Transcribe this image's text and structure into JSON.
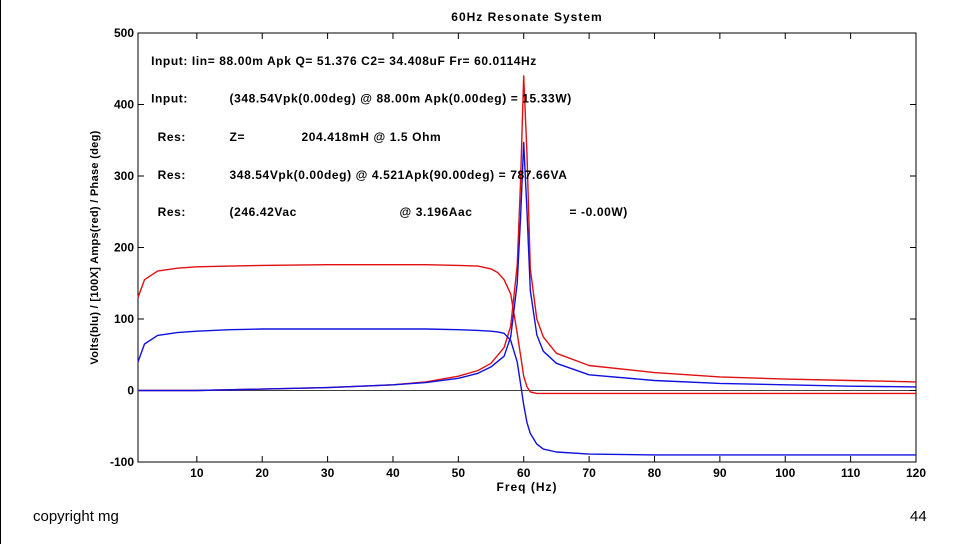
{
  "footer": {
    "left": "copyright mg",
    "right": "44"
  },
  "chart_data": {
    "type": "line",
    "title": "60Hz Resonate System",
    "xlabel": "Freq (Hz)",
    "ylabel": "Volts(blu)  / [100X] Amps(red) / Phase (deg)",
    "xlim": [
      1,
      120
    ],
    "ylim": [
      -100,
      500
    ],
    "xticks": [
      10,
      20,
      30,
      40,
      50,
      60,
      70,
      80,
      90,
      100,
      110,
      120
    ],
    "yticks": [
      -100,
      0,
      100,
      200,
      300,
      400,
      500
    ],
    "grid": false,
    "legend": "none",
    "zero_line": true,
    "annotations": [
      {
        "text": "Input: Iin= 88.00m Apk  Q= 51.376  C2= 34.408uF Fr= 60.0114Hz",
        "x": 3,
        "y": 455
      },
      {
        "text": "Input:",
        "x": 3,
        "y": 403
      },
      {
        "text": "(348.54Vpk(0.00deg) @ 88.00m Apk(0.00deg) = 15.33W)",
        "x": 15,
        "y": 403
      },
      {
        "text": "Res:",
        "x": 4,
        "y": 349
      },
      {
        "text": "Z=",
        "x": 15,
        "y": 349
      },
      {
        "text": "204.418mH @ 1.5 Ohm",
        "x": 26,
        "y": 349
      },
      {
        "text": "Res:",
        "x": 4,
        "y": 296
      },
      {
        "text": "348.54Vpk(0.00deg) @ 4.521Apk(90.00deg) = 787.66VA",
        "x": 15,
        "y": 296
      },
      {
        "text": "Res:",
        "x": 4,
        "y": 244
      },
      {
        "text": "(246.42Vac",
        "x": 15,
        "y": 244
      },
      {
        "text": "@ 3.196Aac",
        "x": 41,
        "y": 244
      },
      {
        "text": "= -0.00W)",
        "x": 67,
        "y": 244
      }
    ],
    "series": [
      {
        "color": "#e01010",
        "x": [
          1,
          2,
          4,
          7,
          10,
          15,
          20,
          30,
          40,
          45,
          50,
          53,
          55,
          56,
          57,
          58,
          59,
          59.5,
          60,
          60.5,
          61,
          62,
          63,
          65,
          70,
          80,
          90,
          100,
          110,
          120
        ],
        "y": [
          130,
          155,
          167,
          171,
          173,
          174,
          175,
          176,
          176,
          176,
          175,
          174,
          170,
          165,
          155,
          135,
          80,
          50,
          20,
          5,
          -2,
          -4,
          -4,
          -4,
          -4,
          -4,
          -4,
          -4,
          -4,
          -4
        ]
      },
      {
        "color": "#e01010",
        "x": [
          1,
          10,
          20,
          30,
          40,
          45,
          50,
          53,
          55,
          57,
          58,
          59,
          59.5,
          60,
          60.5,
          61,
          62,
          63,
          65,
          70,
          80,
          90,
          100,
          110,
          120
        ],
        "y": [
          0,
          0,
          2,
          4,
          8,
          12,
          20,
          28,
          38,
          60,
          90,
          175,
          290,
          440,
          330,
          170,
          100,
          75,
          52,
          35,
          25,
          19,
          16,
          14,
          12
        ]
      },
      {
        "color": "#1010e0",
        "x": [
          1,
          2,
          4,
          7,
          10,
          15,
          20,
          30,
          40,
          45,
          50,
          53,
          55,
          56,
          57,
          58,
          59,
          59.5,
          60,
          60.5,
          61,
          62,
          63,
          65,
          70,
          80,
          90,
          100,
          110,
          120
        ],
        "y": [
          40,
          65,
          77,
          81,
          83,
          85,
          86,
          86,
          86,
          86,
          85,
          84,
          83,
          82,
          80,
          70,
          40,
          10,
          -20,
          -45,
          -60,
          -75,
          -82,
          -86,
          -89,
          -90,
          -90,
          -90,
          -90,
          -90
        ]
      },
      {
        "color": "#1010e0",
        "x": [
          1,
          10,
          20,
          30,
          40,
          45,
          50,
          53,
          55,
          57,
          58,
          59,
          59.5,
          60,
          60.5,
          61,
          62,
          63,
          65,
          70,
          80,
          90,
          100,
          110,
          120
        ],
        "y": [
          0,
          0,
          2,
          4,
          8,
          11,
          17,
          24,
          33,
          48,
          75,
          150,
          240,
          347,
          250,
          140,
          78,
          55,
          38,
          22,
          14,
          10,
          8,
          6,
          5
        ]
      }
    ]
  }
}
